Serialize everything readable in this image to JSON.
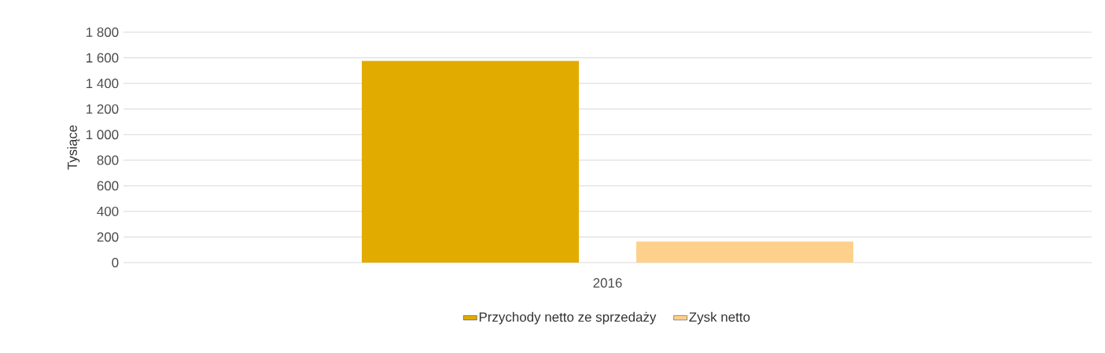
{
  "chart_data": {
    "type": "bar",
    "ylabel": "Tysiące",
    "categories": [
      "2016"
    ],
    "series": [
      {
        "name": "Przychody netto ze sprzedaży",
        "color": "#e2ab00",
        "values": [
          1575
        ]
      },
      {
        "name": "Zysk netto",
        "color": "#fdd18b",
        "values": [
          165
        ]
      }
    ],
    "ylim": [
      0,
      1800
    ],
    "yticks": [
      0,
      200,
      400,
      600,
      800,
      {
        "value": 1000,
        "label": "1 000"
      },
      {
        "value": 1200,
        "label": "1 200"
      },
      {
        "value": 1400,
        "label": "1 400"
      },
      {
        "value": 1600,
        "label": "1 600"
      },
      {
        "value": 1800,
        "label": "1 800"
      }
    ],
    "grid": "y",
    "legend": "bottom"
  }
}
